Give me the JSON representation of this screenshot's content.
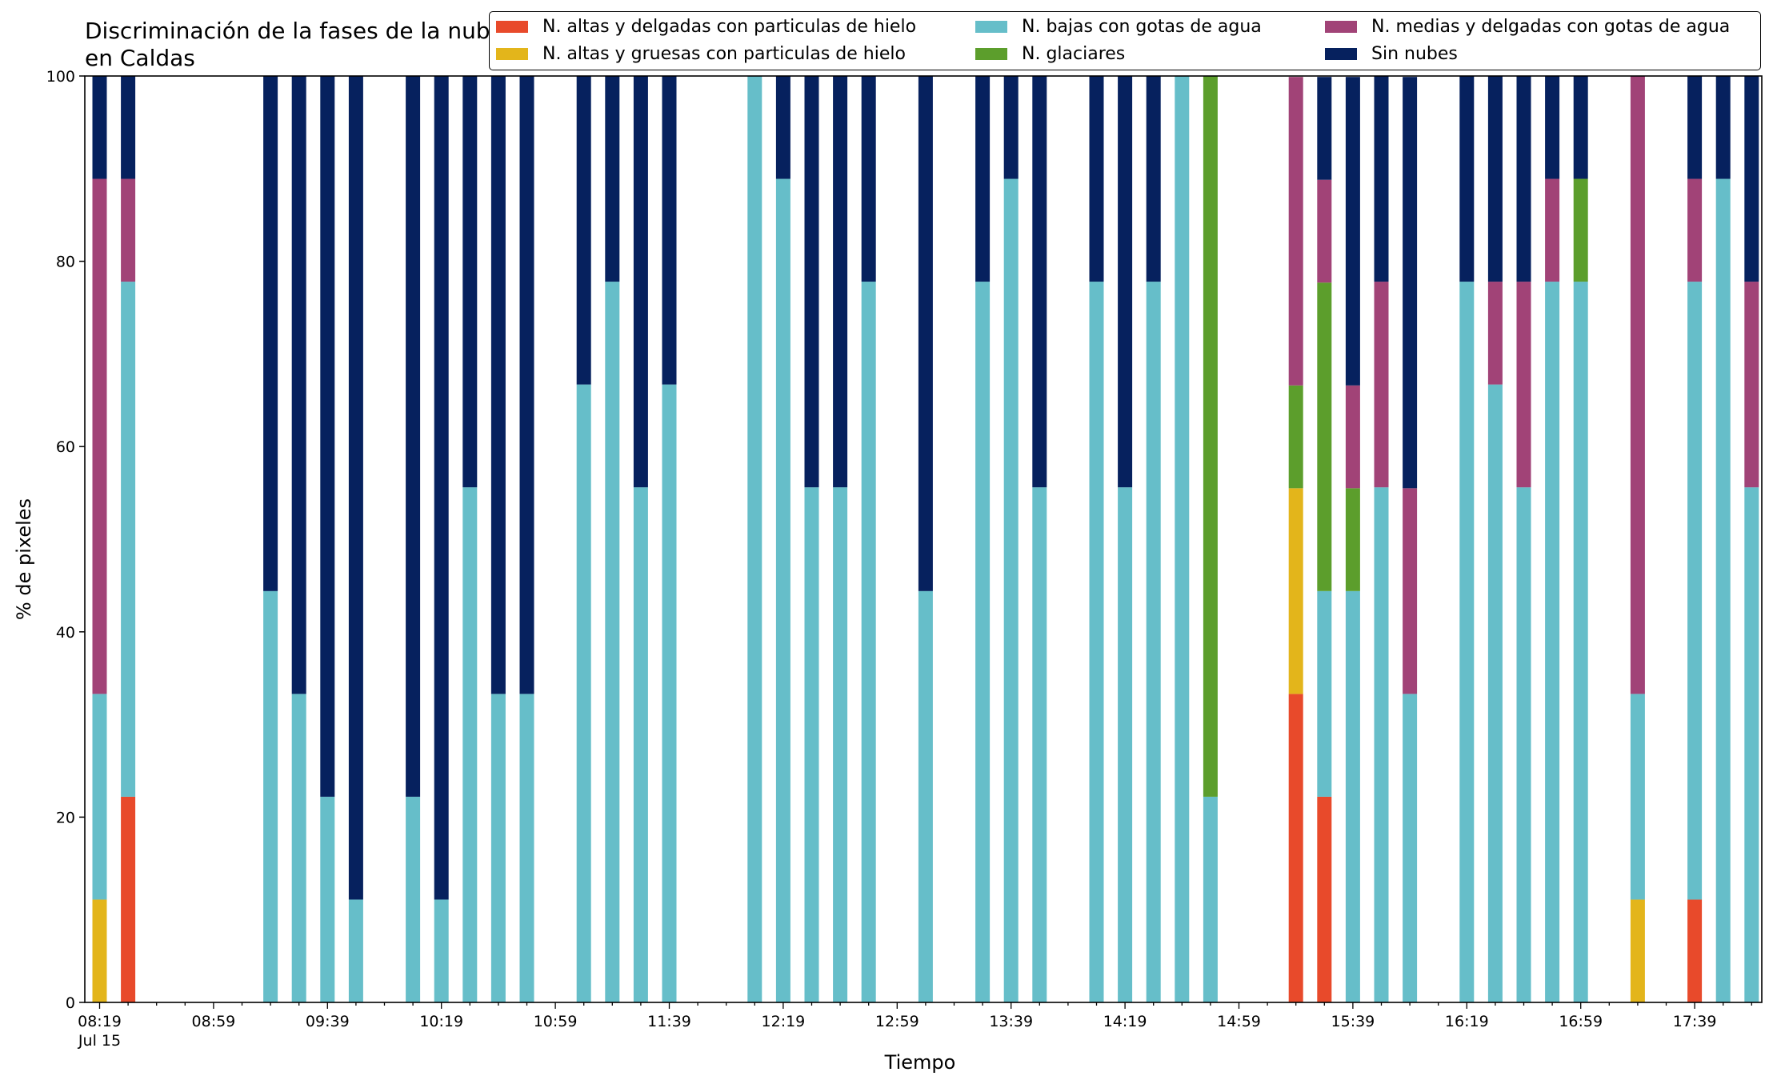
{
  "chart_data": {
    "type": "bar",
    "stacked": true,
    "title": "Discriminación de la fases de la nube en Caldas",
    "xlabel": "Tiempo",
    "ylabel": "% de pixeles",
    "ylim": [
      0,
      100
    ],
    "yticks": [
      0,
      20,
      40,
      60,
      80,
      100
    ],
    "grid": false,
    "legend_position": "top",
    "x_tick_labels": [
      {
        "slot": 0,
        "label": "08:19",
        "sublabel": "Jul 15"
      },
      {
        "slot": 4,
        "label": "08:59"
      },
      {
        "slot": 8,
        "label": "09:39"
      },
      {
        "slot": 12,
        "label": "10:19"
      },
      {
        "slot": 16,
        "label": "10:59"
      },
      {
        "slot": 20,
        "label": "11:39"
      },
      {
        "slot": 24,
        "label": "12:19"
      },
      {
        "slot": 28,
        "label": "12:59"
      },
      {
        "slot": 32,
        "label": "13:39"
      },
      {
        "slot": 36,
        "label": "14:19"
      },
      {
        "slot": 40,
        "label": "14:59"
      },
      {
        "slot": 44,
        "label": "15:39"
      },
      {
        "slot": 48,
        "label": "16:19"
      },
      {
        "slot": 52,
        "label": "16:59"
      },
      {
        "slot": 56,
        "label": "17:39"
      }
    ],
    "series": [
      {
        "name": "N. altas y delgadas con particulas de hielo",
        "color": "#e84a2b"
      },
      {
        "name": "N. altas y gruesas con particulas de hielo",
        "color": "#e3b51b"
      },
      {
        "name": "N. bajas con gotas de agua",
        "color": "#66bec9"
      },
      {
        "name": "N. glaciares",
        "color": "#5c9e2c"
      },
      {
        "name": "N. medias y delgadas con gotas de agua",
        "color": "#a14377"
      },
      {
        "name": "Sin nubes",
        "color": "#06215e"
      }
    ],
    "bars": [
      {
        "slot": 0,
        "values": [
          0,
          11.1,
          22.2,
          0,
          55.6,
          11.1
        ]
      },
      {
        "slot": 1,
        "values": [
          22.2,
          0,
          55.6,
          0,
          11.1,
          11.1
        ]
      },
      {
        "slot": 6,
        "values": [
          0,
          0,
          44.4,
          0,
          0,
          55.6
        ]
      },
      {
        "slot": 7,
        "values": [
          0,
          0,
          33.3,
          0,
          0,
          66.7
        ]
      },
      {
        "slot": 8,
        "values": [
          0,
          0,
          22.2,
          0,
          0,
          77.8
        ]
      },
      {
        "slot": 9,
        "values": [
          0,
          0,
          11.1,
          0,
          0,
          88.9
        ]
      },
      {
        "slot": 11,
        "values": [
          0,
          0,
          22.2,
          0,
          0,
          77.8
        ]
      },
      {
        "slot": 12,
        "values": [
          0,
          0,
          11.1,
          0,
          0,
          88.9
        ]
      },
      {
        "slot": 13,
        "values": [
          0,
          0,
          55.6,
          0,
          0,
          44.4
        ]
      },
      {
        "slot": 14,
        "values": [
          0,
          0,
          33.3,
          0,
          0,
          66.7
        ]
      },
      {
        "slot": 15,
        "values": [
          0,
          0,
          33.3,
          0,
          0,
          66.7
        ]
      },
      {
        "slot": 17,
        "values": [
          0,
          0,
          66.7,
          0,
          0,
          33.3
        ]
      },
      {
        "slot": 18,
        "values": [
          0,
          0,
          77.8,
          0,
          0,
          22.2
        ]
      },
      {
        "slot": 19,
        "values": [
          0,
          0,
          55.6,
          0,
          0,
          44.4
        ]
      },
      {
        "slot": 20,
        "values": [
          0,
          0,
          66.7,
          0,
          0,
          33.3
        ]
      },
      {
        "slot": 23,
        "values": [
          0,
          0,
          100,
          0,
          0,
          0
        ]
      },
      {
        "slot": 24,
        "values": [
          0,
          0,
          88.9,
          0,
          0,
          11.1
        ]
      },
      {
        "slot": 25,
        "values": [
          0,
          0,
          55.6,
          0,
          0,
          44.4
        ]
      },
      {
        "slot": 26,
        "values": [
          0,
          0,
          55.6,
          0,
          0,
          44.4
        ]
      },
      {
        "slot": 27,
        "values": [
          0,
          0,
          77.8,
          0,
          0,
          22.2
        ]
      },
      {
        "slot": 29,
        "values": [
          0,
          0,
          44.4,
          0,
          0,
          55.6
        ]
      },
      {
        "slot": 31,
        "values": [
          0,
          0,
          77.8,
          0,
          0,
          22.2
        ]
      },
      {
        "slot": 32,
        "values": [
          0,
          0,
          88.9,
          0,
          0,
          11.1
        ]
      },
      {
        "slot": 33,
        "values": [
          0,
          0,
          55.6,
          0,
          0,
          44.4
        ]
      },
      {
        "slot": 35,
        "values": [
          0,
          0,
          77.8,
          0,
          0,
          22.2
        ]
      },
      {
        "slot": 36,
        "values": [
          0,
          0,
          55.6,
          0,
          0,
          44.4
        ]
      },
      {
        "slot": 37,
        "values": [
          0,
          0,
          77.8,
          0,
          0,
          22.2
        ]
      },
      {
        "slot": 38,
        "values": [
          0,
          0,
          100,
          0,
          0,
          0
        ]
      },
      {
        "slot": 39,
        "values": [
          0,
          0,
          22.2,
          77.8,
          0,
          0
        ]
      },
      {
        "slot": 42,
        "values": [
          33.3,
          22.2,
          0,
          11.1,
          33.3,
          0
        ]
      },
      {
        "slot": 43,
        "values": [
          22.2,
          0,
          22.2,
          33.3,
          11.1,
          11.1
        ]
      },
      {
        "slot": 44,
        "values": [
          0,
          0,
          44.4,
          11.1,
          11.1,
          33.3
        ]
      },
      {
        "slot": 45,
        "values": [
          0,
          0,
          55.6,
          0,
          22.2,
          22.2
        ]
      },
      {
        "slot": 46,
        "values": [
          0,
          0,
          33.3,
          0,
          22.2,
          44.4
        ]
      },
      {
        "slot": 48,
        "values": [
          0,
          0,
          77.8,
          0,
          0,
          22.2
        ]
      },
      {
        "slot": 49,
        "values": [
          0,
          0,
          66.7,
          0,
          11.1,
          22.2
        ]
      },
      {
        "slot": 50,
        "values": [
          0,
          0,
          55.6,
          0,
          22.2,
          22.2
        ]
      },
      {
        "slot": 51,
        "values": [
          0,
          0,
          77.8,
          0,
          11.1,
          11.1
        ]
      },
      {
        "slot": 52,
        "values": [
          0,
          0,
          77.8,
          11.1,
          0,
          11.1
        ]
      },
      {
        "slot": 54,
        "values": [
          0,
          11.1,
          22.2,
          0,
          66.7,
          0
        ]
      },
      {
        "slot": 56,
        "values": [
          11.1,
          0,
          66.7,
          0,
          11.1,
          11.1
        ]
      },
      {
        "slot": 57,
        "values": [
          0,
          0,
          88.9,
          0,
          0,
          11.1
        ]
      },
      {
        "slot": 58,
        "values": [
          0,
          0,
          55.6,
          0,
          22.2,
          22.2
        ]
      }
    ]
  }
}
